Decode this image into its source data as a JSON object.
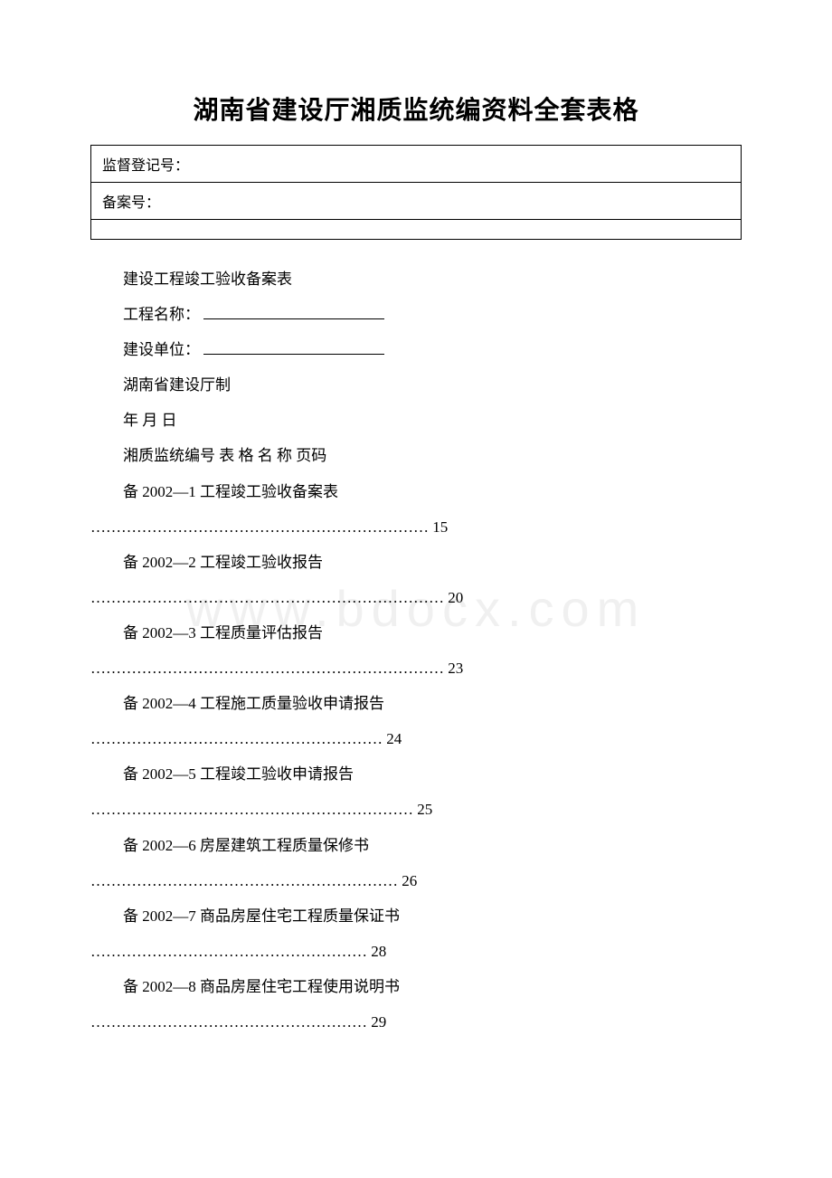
{
  "title": "湖南省建设厅湘质监统编资料全套表格",
  "header": {
    "row1": "监督登记号：",
    "row2": "备案号：",
    "row3": ""
  },
  "body": {
    "line1": "建设工程竣工验收备案表",
    "line2_label": "工程名称：",
    "line3_label": "建设单位：",
    "line4": "湖南省建设厅制",
    "line5": "年 月 日",
    "line6": "湘质监统编号 表 格  名 称 页码"
  },
  "toc": [
    {
      "label": "备 2002—1 工程竣工验收备案表",
      "dots": "…………………………………………………………",
      "page": "15"
    },
    {
      "label": "备 2002—2 工程竣工验收报告",
      "dots": "……………………………………………………………",
      "page": "20"
    },
    {
      "label": "备 2002—3 工程质量评估报告",
      "dots": "……………………………………………………………",
      "page": "23"
    },
    {
      "label": "备 2002—4 工程施工质量验收申请报告",
      "dots": "…………………………………………………",
      "page": "24"
    },
    {
      "label": "备 2002—5 工程竣工验收申请报告",
      "dots": "………………………………………………………",
      "page": "25"
    },
    {
      "label": "备 2002—6 房屋建筑工程质量保修书",
      "dots": "……………………………………………………",
      "page": "26"
    },
    {
      "label": "备 2002—7 商品房屋住宅工程质量保证书",
      "dots": "………………………………………………",
      "page": "28"
    },
    {
      "label": "备 2002—8 商品房屋住宅工程使用说明书",
      "dots": "………………………………………………",
      "page": "29"
    }
  ],
  "watermark": "www.bdocx.com"
}
